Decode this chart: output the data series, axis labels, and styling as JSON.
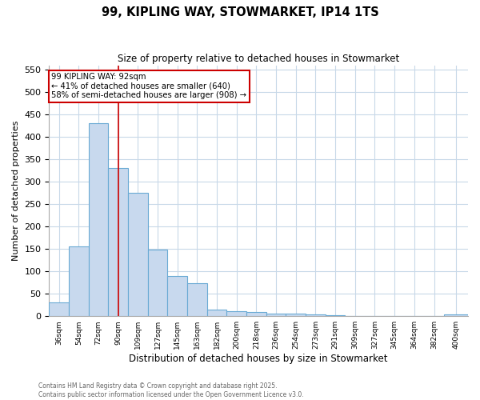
{
  "title_line1": "99, KIPLING WAY, STOWMARKET, IP14 1TS",
  "title_line2": "Size of property relative to detached houses in Stowmarket",
  "xlabel": "Distribution of detached houses by size in Stowmarket",
  "ylabel": "Number of detached properties",
  "annotation_title": "99 KIPLING WAY: 92sqm",
  "annotation_line2": "← 41% of detached houses are smaller (640)",
  "annotation_line3": "58% of semi-detached houses are larger (908) →",
  "footer_line1": "Contains HM Land Registry data © Crown copyright and database right 2025.",
  "footer_line2": "Contains public sector information licensed under the Open Government Licence v3.0.",
  "bar_color": "#c8d9ee",
  "bar_edge_color": "#6aaad4",
  "background_color": "#ffffff",
  "grid_color": "#c8d8e8",
  "red_line_x": 90,
  "red_line_color": "#cc0000",
  "annotation_box_edge_color": "#cc0000",
  "categories": [
    "36sqm",
    "54sqm",
    "72sqm",
    "90sqm",
    "109sqm",
    "127sqm",
    "145sqm",
    "163sqm",
    "182sqm",
    "200sqm",
    "218sqm",
    "236sqm",
    "254sqm",
    "273sqm",
    "291sqm",
    "309sqm",
    "327sqm",
    "345sqm",
    "364sqm",
    "382sqm",
    "400sqm"
  ],
  "bin_edges": [
    27,
    45,
    63,
    81,
    99,
    117,
    135,
    153,
    171,
    189,
    207,
    225,
    243,
    261,
    279,
    297,
    315,
    333,
    351,
    369,
    387,
    409
  ],
  "values": [
    30,
    155,
    430,
    330,
    275,
    148,
    90,
    73,
    14,
    11,
    10,
    6,
    5,
    4,
    2,
    1,
    1,
    1,
    1,
    1,
    4
  ],
  "ylim": [
    0,
    560
  ],
  "yticks": [
    0,
    50,
    100,
    150,
    200,
    250,
    300,
    350,
    400,
    450,
    500,
    550
  ]
}
